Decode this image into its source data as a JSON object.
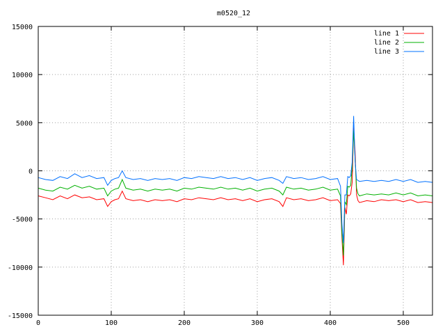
{
  "chart_data": {
    "type": "line",
    "title": "m0520_12",
    "xlabel": "",
    "ylabel": "",
    "xlim": [
      0,
      540
    ],
    "ylim": [
      -15000,
      15000
    ],
    "xticks": [
      0,
      100,
      200,
      300,
      400,
      500
    ],
    "yticks": [
      -15000,
      -10000,
      -5000,
      0,
      5000,
      10000,
      15000
    ],
    "grid": true,
    "legend_position": "top-right",
    "series": [
      {
        "name": "line 1",
        "color": "#ff0000",
        "x": [
          0,
          10,
          20,
          30,
          40,
          50,
          60,
          70,
          80,
          90,
          95,
          100,
          105,
          110,
          115,
          120,
          130,
          140,
          150,
          160,
          170,
          180,
          190,
          200,
          210,
          220,
          230,
          240,
          250,
          260,
          270,
          280,
          290,
          300,
          310,
          320,
          330,
          335,
          340,
          350,
          360,
          370,
          380,
          390,
          400,
          410,
          414,
          416,
          418,
          420,
          422,
          424,
          426,
          428,
          430,
          432,
          434,
          436,
          438,
          440,
          450,
          460,
          470,
          480,
          490,
          500,
          510,
          520,
          530,
          540
        ],
        "y": [
          -2600,
          -2800,
          -3000,
          -2600,
          -2900,
          -2500,
          -2800,
          -2700,
          -3000,
          -2900,
          -3700,
          -3200,
          -3000,
          -2900,
          -2100,
          -2900,
          -3100,
          -3000,
          -3200,
          -3000,
          -3100,
          -3000,
          -3200,
          -2900,
          -3000,
          -2800,
          -2900,
          -3000,
          -2800,
          -3000,
          -2900,
          -3100,
          -2900,
          -3200,
          -3000,
          -2900,
          -3200,
          -3700,
          -2800,
          -3000,
          -2900,
          -3100,
          -3000,
          -2800,
          -3100,
          -3000,
          -3400,
          -7000,
          -9800,
          -3800,
          -4500,
          -2500,
          -2600,
          -2400,
          -1200,
          4500,
          2000,
          -2500,
          -3100,
          -3300,
          -3100,
          -3200,
          -3000,
          -3100,
          -3000,
          -3200,
          -3000,
          -3300,
          -3200,
          -3300
        ]
      },
      {
        "name": "line 2",
        "color": "#00b000",
        "x": [
          0,
          10,
          20,
          30,
          40,
          50,
          60,
          70,
          80,
          90,
          95,
          100,
          105,
          110,
          115,
          120,
          130,
          140,
          150,
          160,
          170,
          180,
          190,
          200,
          210,
          220,
          230,
          240,
          250,
          260,
          270,
          280,
          290,
          300,
          310,
          320,
          330,
          335,
          340,
          350,
          360,
          370,
          380,
          390,
          400,
          410,
          414,
          416,
          418,
          420,
          422,
          424,
          426,
          428,
          430,
          432,
          434,
          436,
          438,
          440,
          450,
          460,
          470,
          480,
          490,
          500,
          510,
          520,
          530,
          540
        ],
        "y": [
          -1800,
          -2000,
          -2100,
          -1700,
          -1900,
          -1500,
          -1800,
          -1600,
          -1900,
          -1800,
          -2600,
          -2100,
          -1900,
          -1800,
          -900,
          -1800,
          -2000,
          -1900,
          -2100,
          -1900,
          -2000,
          -1900,
          -2100,
          -1800,
          -1900,
          -1700,
          -1800,
          -1900,
          -1700,
          -1900,
          -1800,
          -2000,
          -1800,
          -2100,
          -1900,
          -1800,
          -2100,
          -2500,
          -1700,
          -1900,
          -1800,
          -2000,
          -1900,
          -1700,
          -2000,
          -1900,
          -2600,
          -6500,
          -8800,
          -3200,
          -3500,
          -1600,
          -1700,
          -1500,
          400,
          4200,
          1200,
          -1800,
          -2400,
          -2600,
          -2400,
          -2500,
          -2400,
          -2500,
          -2300,
          -2500,
          -2300,
          -2600,
          -2500,
          -2600
        ]
      },
      {
        "name": "line 3",
        "color": "#0070ff",
        "x": [
          0,
          10,
          20,
          30,
          40,
          50,
          60,
          70,
          80,
          90,
          95,
          100,
          105,
          110,
          115,
          120,
          130,
          140,
          150,
          160,
          170,
          180,
          190,
          200,
          210,
          220,
          230,
          240,
          250,
          260,
          270,
          280,
          290,
          300,
          310,
          320,
          330,
          335,
          340,
          350,
          360,
          370,
          380,
          390,
          400,
          410,
          414,
          416,
          418,
          420,
          422,
          424,
          426,
          428,
          430,
          432,
          434,
          436,
          438,
          440,
          450,
          460,
          470,
          480,
          490,
          500,
          510,
          520,
          530,
          540
        ],
        "y": [
          -700,
          -900,
          -1000,
          -600,
          -800,
          -300,
          -700,
          -500,
          -800,
          -700,
          -1500,
          -1000,
          -800,
          -700,
          0,
          -700,
          -900,
          -800,
          -1000,
          -800,
          -900,
          -800,
          -1000,
          -700,
          -800,
          -600,
          -700,
          -800,
          -600,
          -800,
          -700,
          -900,
          -700,
          -1000,
          -800,
          -700,
          -1000,
          -1300,
          -600,
          -800,
          -700,
          -900,
          -800,
          -600,
          -900,
          -800,
          -1600,
          -5500,
          -7500,
          -2500,
          -2500,
          -600,
          -700,
          -500,
          900,
          5700,
          1000,
          -900,
          -1000,
          -1100,
          -1000,
          -1100,
          -1000,
          -1100,
          -900,
          -1100,
          -900,
          -1200,
          -1100,
          -1200
        ]
      }
    ]
  }
}
